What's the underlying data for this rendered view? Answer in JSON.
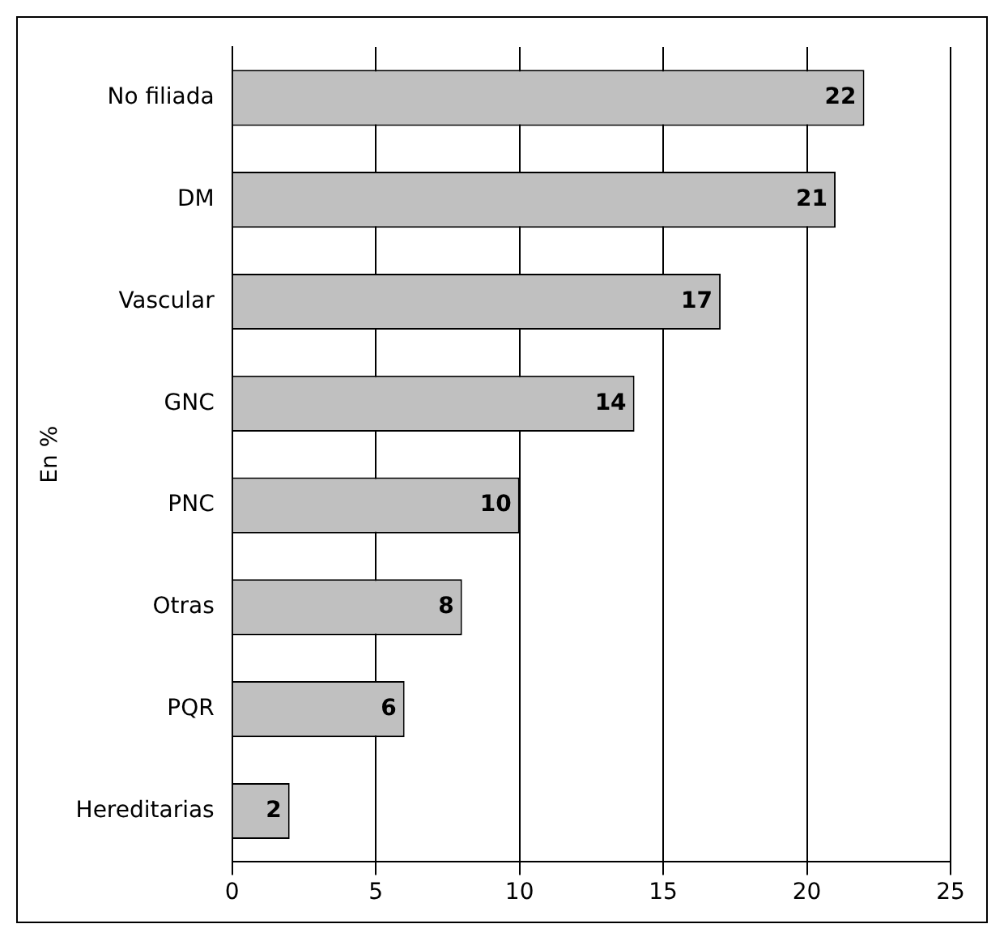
{
  "chart_data": {
    "type": "bar",
    "orientation": "horizontal",
    "ylabel": "En %",
    "categories": [
      "No filiada",
      "DM",
      "Vascular",
      "GNC",
      "PNC",
      "Otras",
      "PQR",
      "Hereditarias"
    ],
    "values": [
      22,
      21,
      17,
      14,
      10,
      8,
      6,
      2
    ],
    "color": "#c0c0c0",
    "xlim": [
      0,
      25
    ],
    "xticks": [
      0,
      5,
      10,
      15,
      20,
      25
    ],
    "grid": "x",
    "data_labels": true,
    "legend": false
  }
}
